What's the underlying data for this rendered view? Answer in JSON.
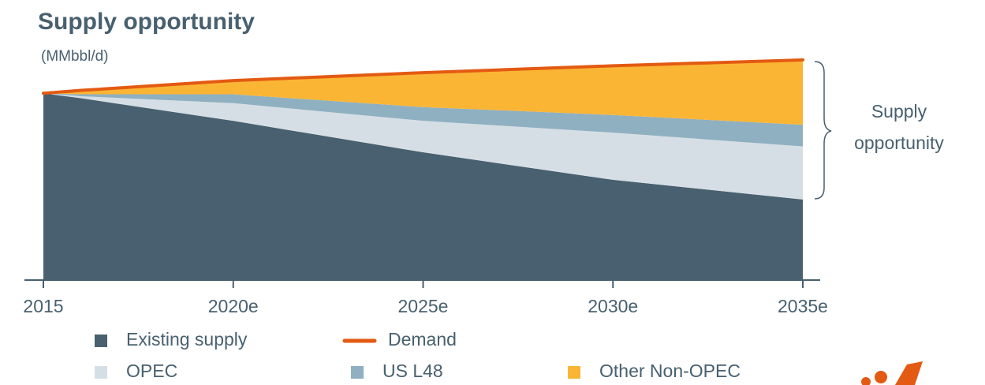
{
  "chart_data": {
    "type": "area",
    "title": "Supply opportunity",
    "subtitle": "(MMbbl/d)",
    "annotation": [
      "Supply",
      "opportunity"
    ],
    "x": [
      2015,
      2016,
      2020,
      2025,
      2030,
      2035
    ],
    "xlim": [
      2015,
      2035
    ],
    "xticks": [
      2015,
      {
        "value": 2020,
        "label": "2020e"
      },
      {
        "value": 2025,
        "label": "2025e"
      },
      {
        "value": 2030,
        "label": "2030e"
      },
      {
        "value": 2035,
        "label": "2035e"
      }
    ],
    "ylim": [
      0,
      120
    ],
    "series": [
      {
        "name": "Existing supply",
        "color": "#48606f",
        "values": [
          95,
          92.5,
          81,
          65,
          51,
          41
        ]
      },
      {
        "name": "OPEC",
        "color": "#d6dee5",
        "values": [
          0,
          1,
          9,
          16,
          24,
          27
        ]
      },
      {
        "name": "US L48",
        "color": "#8fb0c0",
        "values": [
          0,
          1,
          4.5,
          7,
          9,
          11
        ]
      },
      {
        "name": "Other Non-OPEC",
        "color": "#fbb535",
        "values": [
          0,
          2,
          7,
          17.5,
          25,
          33
        ]
      },
      {
        "name": "Demand",
        "color": "#e35a12",
        "type": "line",
        "values": [
          95,
          96.5,
          101.5,
          105.5,
          109,
          112
        ]
      }
    ]
  }
}
